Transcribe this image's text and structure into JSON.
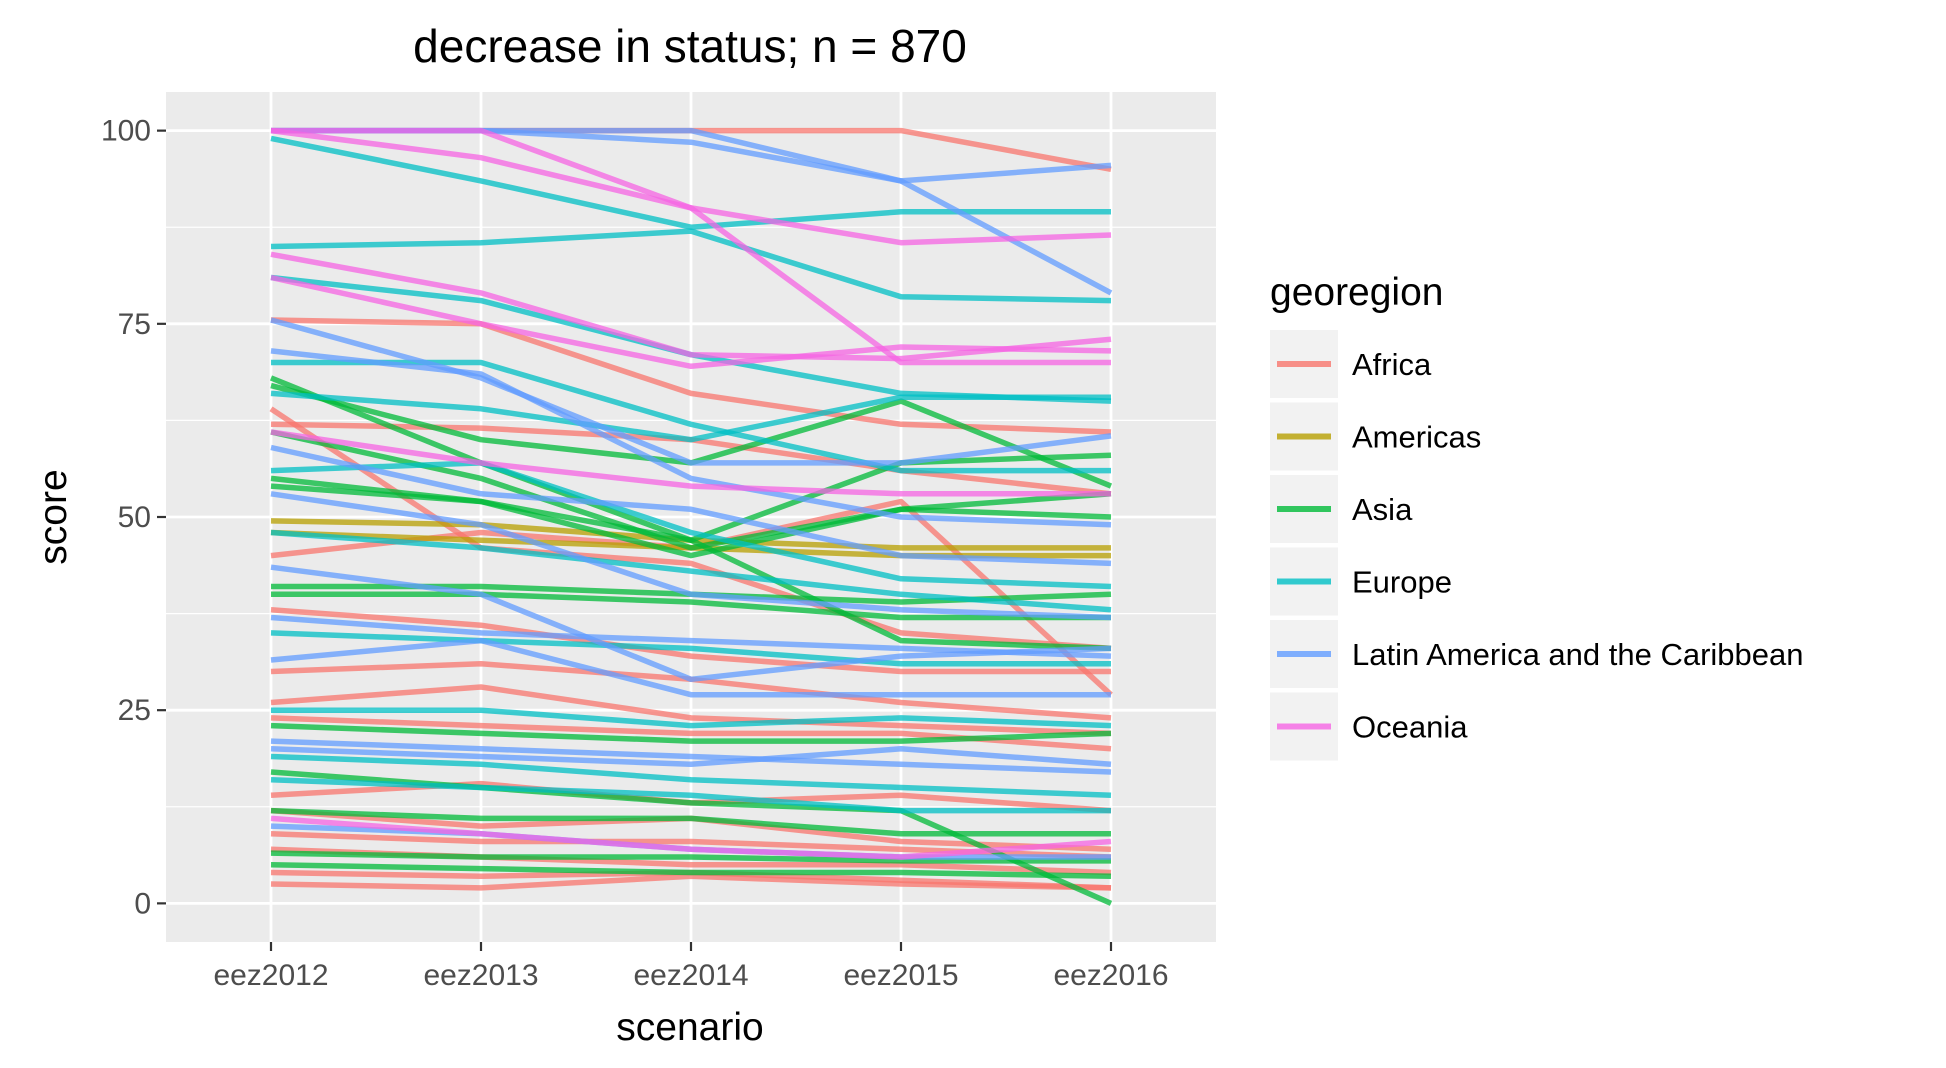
{
  "colors": {
    "Africa": "#F8766D",
    "Americas": "#B79F00",
    "Asia": "#00BA38",
    "Europe": "#00BFC4",
    "Latin America and the Caribbean": "#619CFF",
    "Oceania": "#F564E3",
    "panel_background": "#EBEBEB",
    "grid": "#FFFFFF",
    "tick_text": "#4D4D4D"
  },
  "chart_data": {
    "type": "line",
    "title": "decrease in  status; n = 870",
    "xlabel": "scenario",
    "ylabel": "score",
    "categories": [
      "eez2012",
      "eez2013",
      "eez2014",
      "eez2015",
      "eez2016"
    ],
    "ylim": [
      -5,
      105
    ],
    "yticks": [
      0,
      25,
      50,
      75,
      100
    ],
    "y_tick_labels": [
      "0",
      "25",
      "50",
      "75",
      "100"
    ],
    "grid": true,
    "legend": {
      "title": "georegion",
      "position": "right",
      "entries": [
        "Africa",
        "Americas",
        "Asia",
        "Europe",
        "Latin America and the Caribbean",
        "Oceania"
      ]
    },
    "series": [
      {
        "group": "Africa",
        "values": [
          100,
          100,
          100,
          100,
          95
        ]
      },
      {
        "group": "Africa",
        "values": [
          75.5,
          75,
          66,
          62,
          61
        ]
      },
      {
        "group": "Africa",
        "values": [
          62,
          61.5,
          60,
          56,
          53
        ]
      },
      {
        "group": "Africa",
        "values": [
          64,
          46,
          44,
          35,
          33
        ]
      },
      {
        "group": "Africa",
        "values": [
          45,
          48,
          46,
          52,
          27
        ]
      },
      {
        "group": "Africa",
        "values": [
          38,
          36,
          32,
          30,
          30
        ]
      },
      {
        "group": "Africa",
        "values": [
          30,
          31,
          29,
          26,
          24
        ]
      },
      {
        "group": "Africa",
        "values": [
          26,
          28,
          24,
          23,
          22
        ]
      },
      {
        "group": "Africa",
        "values": [
          24,
          23,
          22,
          22,
          20
        ]
      },
      {
        "group": "Africa",
        "values": [
          14,
          15.5,
          13,
          14,
          12
        ]
      },
      {
        "group": "Africa",
        "values": [
          12,
          10,
          11,
          8,
          7
        ]
      },
      {
        "group": "Africa",
        "values": [
          9,
          8,
          8,
          7,
          6
        ]
      },
      {
        "group": "Africa",
        "values": [
          7,
          6,
          5,
          5,
          4
        ]
      },
      {
        "group": "Africa",
        "values": [
          4,
          3.5,
          4,
          3,
          2
        ]
      },
      {
        "group": "Africa",
        "values": [
          2.5,
          2,
          3.5,
          2.5,
          2
        ]
      },
      {
        "group": "Americas",
        "values": [
          49.5,
          49,
          47,
          46,
          46
        ]
      },
      {
        "group": "Americas",
        "values": [
          48,
          47,
          46,
          45,
          45
        ]
      },
      {
        "group": "Asia",
        "values": [
          68,
          57,
          47,
          34,
          33
        ]
      },
      {
        "group": "Asia",
        "values": [
          67,
          60,
          57,
          65,
          54
        ]
      },
      {
        "group": "Asia",
        "values": [
          61,
          55,
          46,
          51,
          50
        ]
      },
      {
        "group": "Asia",
        "values": [
          55,
          52,
          47,
          57,
          58
        ]
      },
      {
        "group": "Asia",
        "values": [
          54,
          52,
          45,
          51,
          53
        ]
      },
      {
        "group": "Asia",
        "values": [
          41,
          41,
          40,
          39,
          40
        ]
      },
      {
        "group": "Asia",
        "values": [
          40,
          40,
          39,
          37,
          37
        ]
      },
      {
        "group": "Asia",
        "values": [
          23,
          22,
          21,
          21,
          22
        ]
      },
      {
        "group": "Asia",
        "values": [
          17,
          15,
          13,
          12,
          0
        ]
      },
      {
        "group": "Asia",
        "values": [
          12,
          11,
          11,
          9,
          9
        ]
      },
      {
        "group": "Asia",
        "values": [
          6.5,
          6,
          6,
          5.5,
          5.5
        ]
      },
      {
        "group": "Asia",
        "values": [
          5,
          4.5,
          4,
          4,
          3.5
        ]
      },
      {
        "group": "Europe",
        "values": [
          99,
          93.5,
          87.5,
          89.5,
          89.5
        ]
      },
      {
        "group": "Europe",
        "values": [
          85,
          85.5,
          87,
          78.5,
          78
        ]
      },
      {
        "group": "Europe",
        "values": [
          81,
          78,
          71,
          66,
          65
        ]
      },
      {
        "group": "Europe",
        "values": [
          70,
          70,
          62,
          56,
          56
        ]
      },
      {
        "group": "Europe",
        "values": [
          66,
          64,
          60,
          65.5,
          65.5
        ]
      },
      {
        "group": "Europe",
        "values": [
          56,
          57,
          48,
          42,
          41
        ]
      },
      {
        "group": "Europe",
        "values": [
          48,
          46,
          43,
          40,
          38
        ]
      },
      {
        "group": "Europe",
        "values": [
          35,
          34,
          33,
          31,
          31
        ]
      },
      {
        "group": "Europe",
        "values": [
          25,
          25,
          23,
          24,
          23
        ]
      },
      {
        "group": "Europe",
        "values": [
          19,
          18,
          16,
          15,
          14
        ]
      },
      {
        "group": "Europe",
        "values": [
          16,
          15,
          14,
          12,
          12
        ]
      },
      {
        "group": "Latin America and the Caribbean",
        "values": [
          100,
          100,
          98.5,
          93.5,
          95.5
        ]
      },
      {
        "group": "Latin America and the Caribbean",
        "values": [
          100,
          100,
          100,
          93.5,
          79
        ]
      },
      {
        "group": "Latin America and the Caribbean",
        "values": [
          75.5,
          68,
          57,
          57,
          60.5
        ]
      },
      {
        "group": "Latin America and the Caribbean",
        "values": [
          71.5,
          68.5,
          55,
          50,
          49
        ]
      },
      {
        "group": "Latin America and the Caribbean",
        "values": [
          59,
          53,
          51,
          45,
          44
        ]
      },
      {
        "group": "Latin America and the Caribbean",
        "values": [
          53,
          49,
          40,
          38,
          37
        ]
      },
      {
        "group": "Latin America and the Caribbean",
        "values": [
          43.5,
          40,
          29,
          32,
          33
        ]
      },
      {
        "group": "Latin America and the Caribbean",
        "values": [
          37,
          35,
          34,
          33,
          32
        ]
      },
      {
        "group": "Latin America and the Caribbean",
        "values": [
          31.5,
          34,
          27,
          27,
          27
        ]
      },
      {
        "group": "Latin America and the Caribbean",
        "values": [
          21,
          20,
          19,
          18,
          17
        ]
      },
      {
        "group": "Latin America and the Caribbean",
        "values": [
          20,
          19,
          18,
          20,
          18
        ]
      },
      {
        "group": "Latin America and the Caribbean",
        "values": [
          10,
          9,
          7,
          6,
          6
        ]
      },
      {
        "group": "Oceania",
        "values": [
          100,
          100,
          90,
          70,
          70
        ]
      },
      {
        "group": "Oceania",
        "values": [
          100,
          96.5,
          90,
          85.5,
          86.5
        ]
      },
      {
        "group": "Oceania",
        "values": [
          84,
          79,
          71,
          70.5,
          73
        ]
      },
      {
        "group": "Oceania",
        "values": [
          81,
          75,
          69.5,
          72,
          71.5
        ]
      },
      {
        "group": "Oceania",
        "values": [
          61,
          57,
          54,
          53,
          53
        ]
      },
      {
        "group": "Oceania",
        "values": [
          11,
          9,
          7,
          6,
          8
        ]
      }
    ]
  }
}
